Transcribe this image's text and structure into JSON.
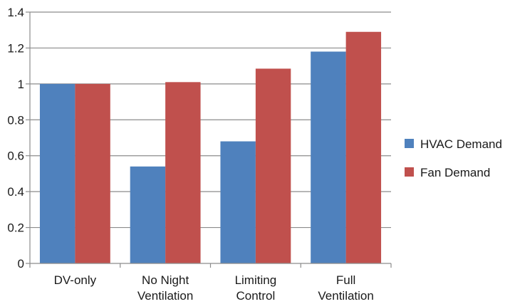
{
  "chart_data": {
    "type": "bar",
    "categories": [
      [
        "DV-only"
      ],
      [
        "No Night",
        "Ventilation"
      ],
      [
        "Limiting",
        "Control"
      ],
      [
        "Full",
        "Ventilation"
      ]
    ],
    "series": [
      {
        "name": "HVAC Demand",
        "color": "#4f81bd",
        "values": [
          1.0,
          0.54,
          0.68,
          1.18
        ]
      },
      {
        "name": "Fan Demand",
        "color": "#c0504d",
        "values": [
          1.0,
          1.01,
          1.085,
          1.29
        ]
      }
    ],
    "ylim": [
      0,
      1.4
    ],
    "yticks": [
      "0",
      "0.2",
      "0.4",
      "0.6",
      "0.8",
      "1",
      "1.2",
      "1.4"
    ],
    "grid": true,
    "legend_position": "right"
  }
}
